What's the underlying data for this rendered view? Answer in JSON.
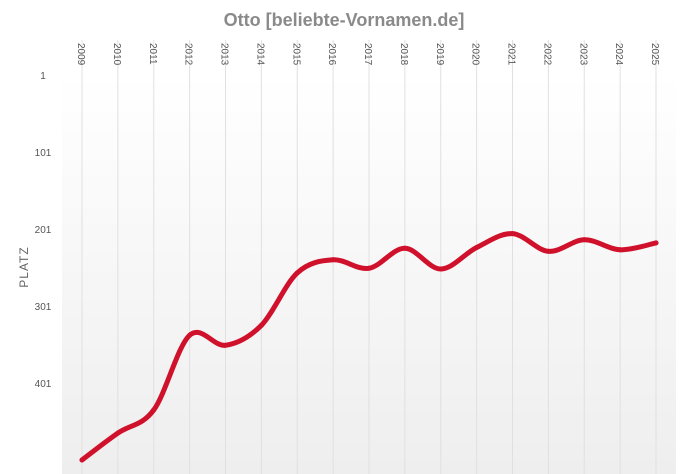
{
  "chart_data": {
    "type": "line",
    "title": "Otto [beliebte-Vornamen.de]",
    "xlabel": "",
    "ylabel": "PLATZ",
    "x": [
      "2009",
      "2010",
      "2011",
      "2012",
      "2013",
      "2014",
      "2015",
      "2016",
      "2017",
      "2018",
      "2019",
      "2020",
      "2021",
      "2022",
      "2023",
      "2024",
      "2025"
    ],
    "y_ticks": [
      1,
      101,
      201,
      301,
      401
    ],
    "y_tick_labels": [
      "1",
      "101",
      "201",
      "301",
      "401"
    ],
    "ylim": [
      1,
      501
    ],
    "y_inverted": true,
    "grid": "vertical",
    "series": [
      {
        "values": [
          501,
          466,
          436,
          339,
          352,
          326,
          258,
          241,
          252,
          226,
          253,
          225,
          207,
          230,
          215,
          228,
          219
        ],
        "color": "#d0112b"
      }
    ],
    "background_gradient": [
      "#ffffff",
      "#eeeeee"
    ]
  }
}
